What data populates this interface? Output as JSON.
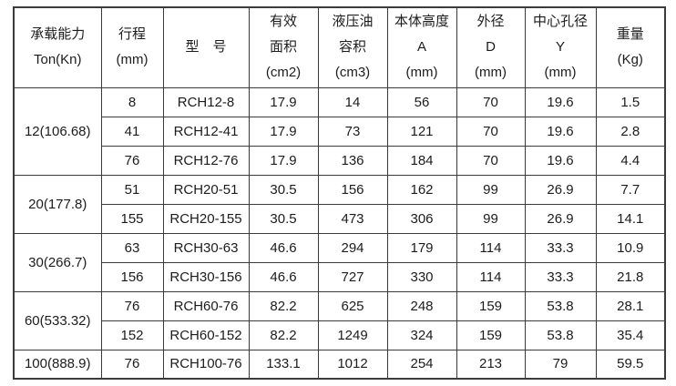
{
  "table": {
    "colors": {
      "border": "#3a3a3a",
      "text": "#1c1c1c",
      "background": "#ffffff"
    },
    "headers": [
      {
        "name": "load-capacity",
        "lines": [
          "承载能力",
          "Ton(Kn)"
        ]
      },
      {
        "name": "stroke",
        "lines": [
          "行程",
          "(mm)"
        ]
      },
      {
        "name": "model",
        "lines": [
          "型　号"
        ]
      },
      {
        "name": "effective-area",
        "lines": [
          "有效",
          "面积",
          "(cm2)"
        ]
      },
      {
        "name": "oil-volume",
        "lines": [
          "液压油",
          "容积",
          "(cm3)"
        ]
      },
      {
        "name": "body-height",
        "lines": [
          "本体高度",
          "A",
          "(mm)"
        ]
      },
      {
        "name": "outer-diameter",
        "lines": [
          "外径",
          "D",
          "(mm)"
        ]
      },
      {
        "name": "center-hole",
        "lines": [
          "中心孔径",
          "Y",
          "(mm)"
        ]
      },
      {
        "name": "weight",
        "lines": [
          "重量",
          "(Kg)"
        ]
      }
    ],
    "groups": [
      {
        "capacity": "12(106.68)",
        "rows": [
          [
            "8",
            "RCH12-8",
            "17.9",
            "14",
            "56",
            "70",
            "19.6",
            "1.5"
          ],
          [
            "41",
            "RCH12-41",
            "17.9",
            "73",
            "121",
            "70",
            "19.6",
            "2.8"
          ],
          [
            "76",
            "RCH12-76",
            "17.9",
            "136",
            "184",
            "70",
            "19.6",
            "4.4"
          ]
        ]
      },
      {
        "capacity": "20(177.8)",
        "rows": [
          [
            "51",
            "RCH20-51",
            "30.5",
            "156",
            "162",
            "99",
            "26.9",
            "7.7"
          ],
          [
            "155",
            "RCH20-155",
            "30.5",
            "473",
            "306",
            "99",
            "26.9",
            "14.1"
          ]
        ]
      },
      {
        "capacity": "30(266.7)",
        "rows": [
          [
            "63",
            "RCH30-63",
            "46.6",
            "294",
            "179",
            "114",
            "33.3",
            "10.9"
          ],
          [
            "156",
            "RCH30-156",
            "46.6",
            "727",
            "330",
            "114",
            "33.3",
            "21.8"
          ]
        ]
      },
      {
        "capacity": "60(533.32)",
        "rows": [
          [
            "76",
            "RCH60-76",
            "82.2",
            "625",
            "248",
            "159",
            "53.8",
            "28.1"
          ],
          [
            "152",
            "RCH60-152",
            "82.2",
            "1249",
            "324",
            "159",
            "53.8",
            "35.4"
          ]
        ]
      },
      {
        "capacity": "100(888.9)",
        "rows": [
          [
            "76",
            "RCH100-76",
            "133.1",
            "1012",
            "254",
            "213",
            "79",
            "59.5"
          ]
        ]
      }
    ]
  }
}
